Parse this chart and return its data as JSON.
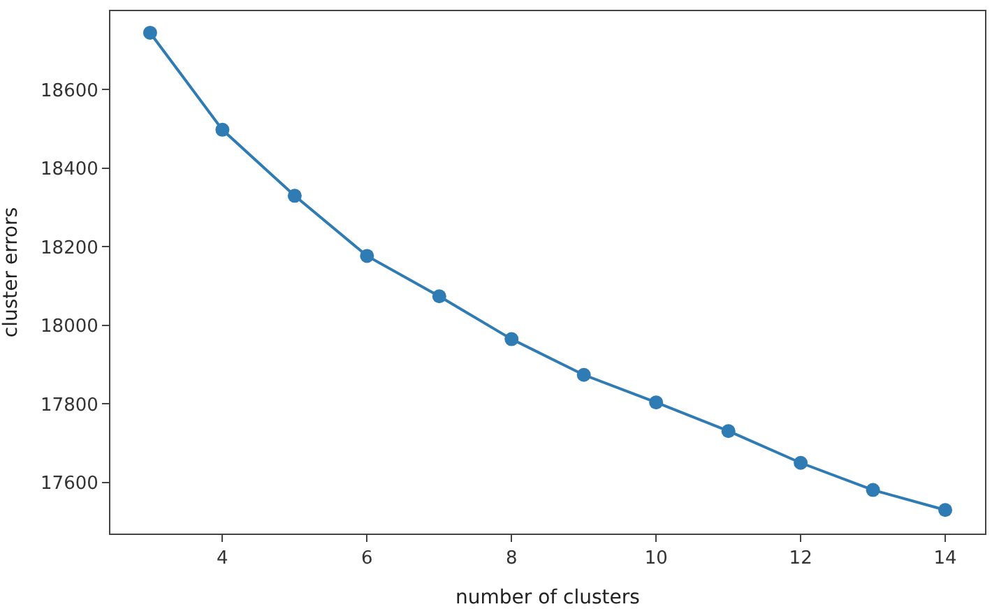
{
  "chart_data": {
    "type": "line",
    "xlabel": "number of clusters",
    "ylabel": "cluster errors",
    "x": [
      3,
      4,
      5,
      6,
      7,
      8,
      9,
      10,
      11,
      12,
      13,
      14
    ],
    "series": [
      {
        "color": "#2f7bb4",
        "values": [
          18745,
          18498,
          18330,
          18177,
          18074,
          17965,
          17874,
          17804,
          17731,
          17650,
          17581,
          17530
        ]
      }
    ],
    "xlim": [
      2.45,
      14.55
    ],
    "ylim": [
      17470,
      18800
    ],
    "xticks": [
      4,
      6,
      8,
      10,
      12,
      14
    ],
    "yticks": [
      17600,
      17800,
      18000,
      18200,
      18400,
      18600
    ],
    "marker": "circle",
    "line_style": "solid"
  }
}
